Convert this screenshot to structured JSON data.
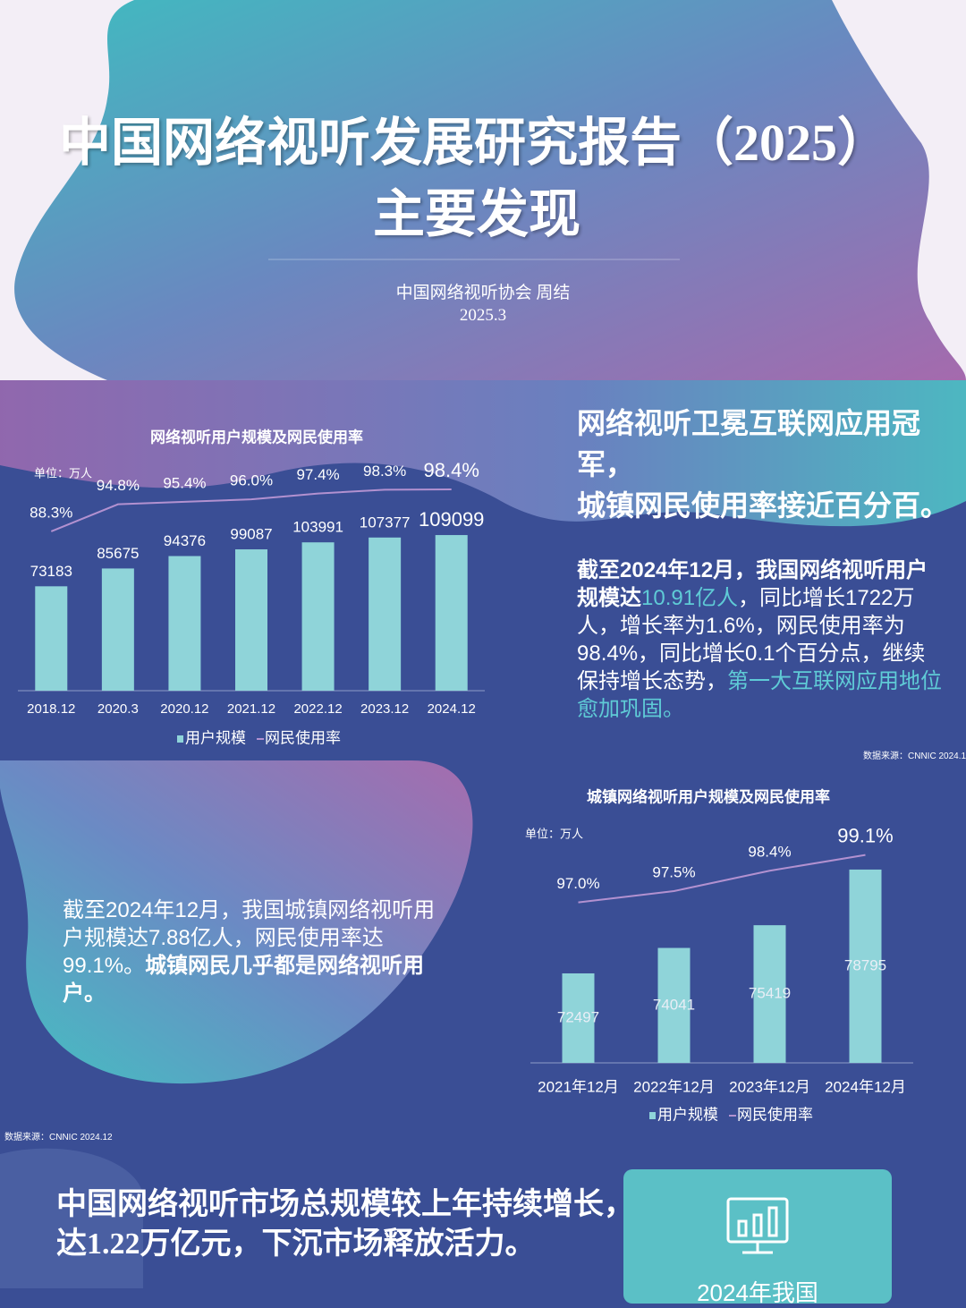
{
  "header": {
    "title_line1": "中国网络视听发展研究报告（2025）",
    "title_line2": "主要发现",
    "author": "中国网络视听协会 周结",
    "date": "2025.3"
  },
  "section1": {
    "heading_line1": "网络视听卫冕互联网应用冠军，",
    "heading_line2": "城镇网民使用率接近百分百。",
    "body_parts": [
      "截至2024年12月，我国网络视听用户规模达",
      "10.91亿人",
      "，同比增长1722万人，增长率为1.6%，网民使用率为98.4%，同比增长0.1个百分点，继续保持增长态势，",
      "第一大互联网应用地位愈加巩固。"
    ],
    "source": "数据来源：CNNIC 2024.1"
  },
  "section2": {
    "body_parts": [
      "截至2024年12月，我国城镇网络视听用户规模达7.88亿人，网民使用率达99.1%。",
      "城镇网民几乎都是网络视听用户。"
    ],
    "source": "数据来源：CNNIC 2024.12"
  },
  "section3": {
    "heading_line1": "中国网络视听市场总规模较上年持续增长，",
    "heading_line2": "达1.22万亿元，下沉市场释放活力。",
    "card_text": "2024年我国"
  },
  "chart_data": [
    {
      "type": "bar",
      "title": "网络视听用户规模及网民使用率",
      "unit": "单位：万人",
      "categories": [
        "2018.12",
        "2020.3",
        "2020.12",
        "2021.12",
        "2022.12",
        "2023.12",
        "2024.12"
      ],
      "series": [
        {
          "name": "用户规模",
          "color": "#8fd4d9",
          "values": [
            73183,
            85675,
            94376,
            99087,
            103991,
            107377,
            109099
          ]
        },
        {
          "name": "网民使用率",
          "color": "#b291d0",
          "axis": "y2",
          "values": [
            88.3,
            94.8,
            95.4,
            96.0,
            97.4,
            98.3,
            98.4
          ],
          "value_labels": [
            "88.3%",
            "94.8%",
            "95.4%",
            "96.0%",
            "97.4%",
            "98.3%",
            "98.4%"
          ]
        }
      ],
      "ylim": [
        0,
        175000
      ],
      "y2lim": [
        50,
        110
      ]
    },
    {
      "type": "bar",
      "title": "城镇网络视听用户规模及网民使用率",
      "unit": "单位：万人",
      "categories": [
        "2021年12月",
        "2022年12月",
        "2023年12月",
        "2024年12月"
      ],
      "series": [
        {
          "name": "用户规模",
          "color": "#8fd4d9",
          "values": [
            72497,
            74041,
            75419,
            78795
          ]
        },
        {
          "name": "网民使用率",
          "color": "#b291d0",
          "axis": "y2",
          "values": [
            97.0,
            97.5,
            98.4,
            99.1
          ],
          "value_labels": [
            "97.0%",
            "97.5%",
            "98.4%",
            "99.1%"
          ]
        }
      ],
      "ylim": [
        67068,
        82700
      ],
      "y2lim": [
        89.9,
        101.3
      ]
    }
  ]
}
